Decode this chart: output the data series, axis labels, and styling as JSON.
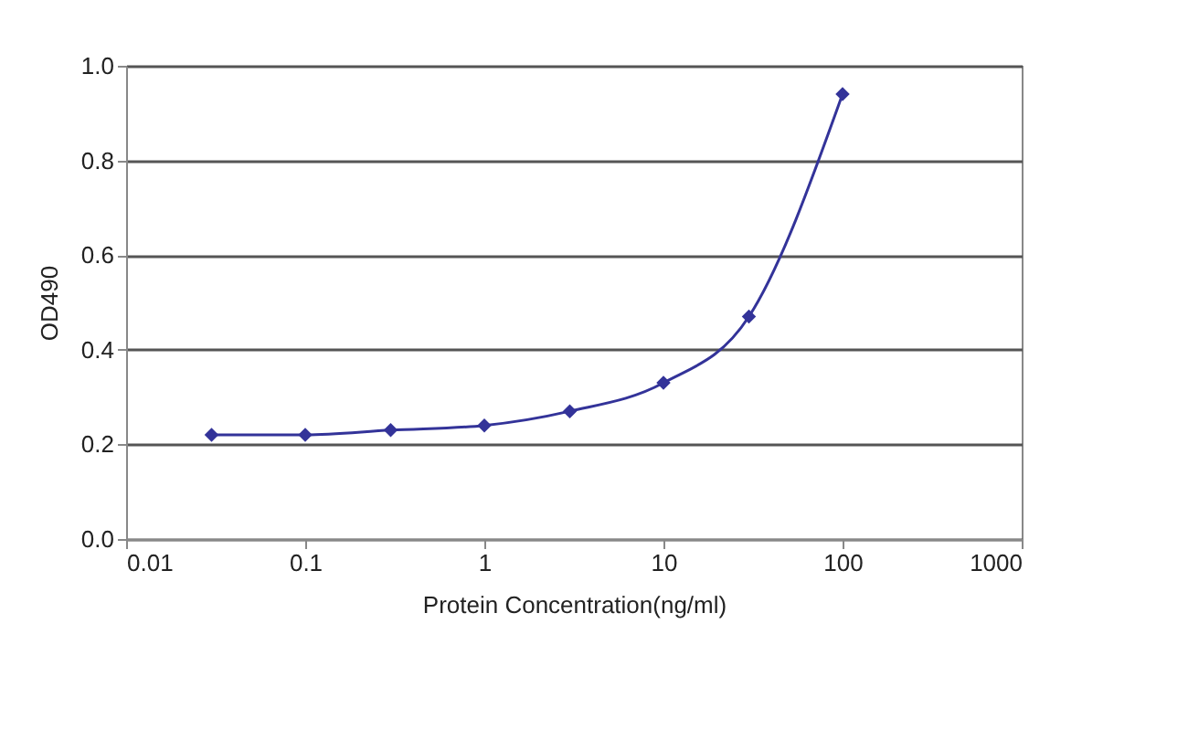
{
  "chart_data": {
    "type": "line",
    "xlabel": "Protein Concentration(ng/ml)",
    "ylabel": "OD490",
    "x": [
      0.03,
      0.1,
      0.3,
      1,
      3,
      10,
      30,
      100
    ],
    "series": [
      {
        "color": "#333399",
        "values": [
          0.22,
          0.22,
          0.23,
          0.24,
          0.27,
          0.33,
          0.47,
          0.94
        ]
      }
    ],
    "log": "x",
    "xlim": [
      0.01,
      1000
    ],
    "xticks": [
      0.01,
      0.1,
      1,
      10,
      100,
      1000
    ],
    "ylim": [
      0,
      1
    ],
    "yticks": [
      {
        "value": 0,
        "label": "0.0"
      },
      {
        "value": 0.2,
        "label": "0.2"
      },
      {
        "value": 0.4,
        "label": "0.4"
      },
      {
        "value": 0.6,
        "label": "0.6"
      },
      {
        "value": 0.8,
        "label": "0.8"
      },
      {
        "value": 1,
        "label": "1.0"
      }
    ],
    "grid": "y",
    "marker": "diamond",
    "line_style": "solid"
  }
}
